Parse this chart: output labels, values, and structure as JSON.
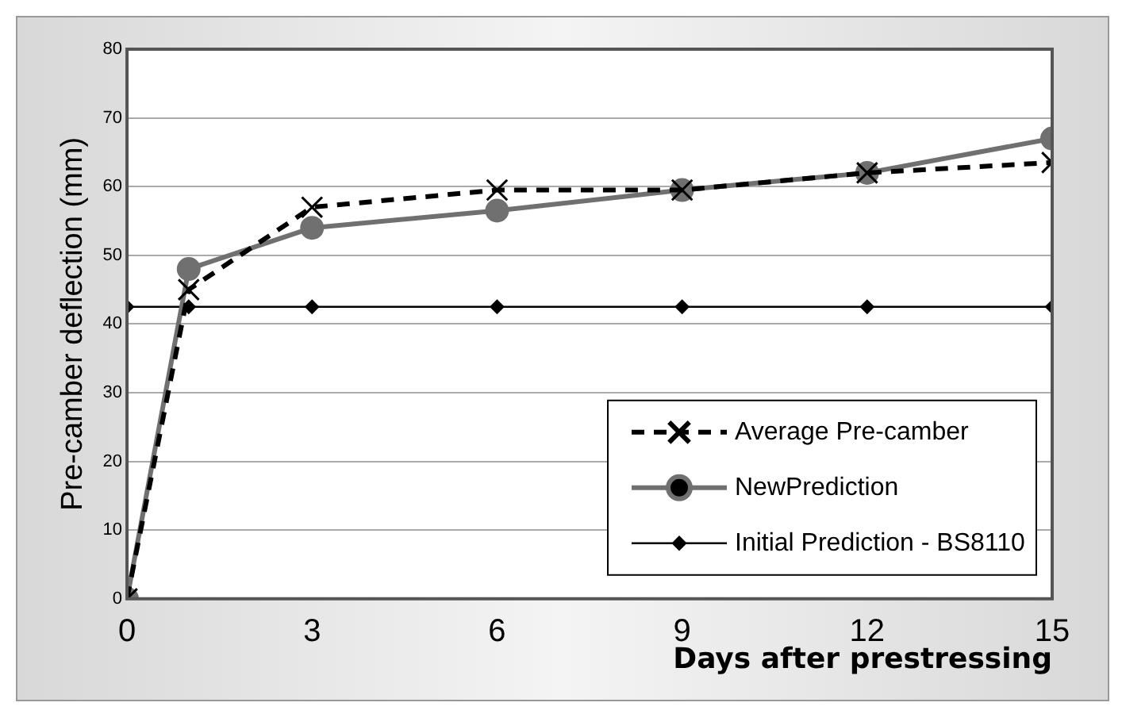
{
  "chart_data": {
    "type": "line",
    "xlabel": "Days after prestressing",
    "ylabel": "Pre-camber deflection (mm)",
    "x": [
      0,
      1,
      3,
      6,
      9,
      12,
      15
    ],
    "series": [
      {
        "name": "Average Pre-camber",
        "color": "#000000",
        "values": [
          0,
          45,
          57,
          59.5,
          59.5,
          62,
          63.5
        ],
        "marker": "cross",
        "line_style": "dashed"
      },
      {
        "name": "NewPrediction",
        "color": "#707070",
        "values": [
          0,
          48,
          54,
          56.5,
          59.5,
          62,
          67
        ],
        "marker": "circle",
        "line_style": "solid"
      },
      {
        "name": "Initial Prediction - BS8110",
        "color": "#000000",
        "values": [
          42.5,
          42.5,
          42.5,
          42.5,
          42.5,
          42.5,
          42.5
        ],
        "marker": "diamond",
        "line_style": "solid"
      }
    ],
    "xlim": [
      0,
      15
    ],
    "xticks": [
      0,
      3,
      6,
      9,
      12,
      15
    ],
    "ylim": [
      0,
      80
    ],
    "yticks": [
      0,
      10,
      20,
      30,
      40,
      50,
      60,
      70,
      80
    ],
    "grid": "y",
    "legend": "bottom right"
  }
}
